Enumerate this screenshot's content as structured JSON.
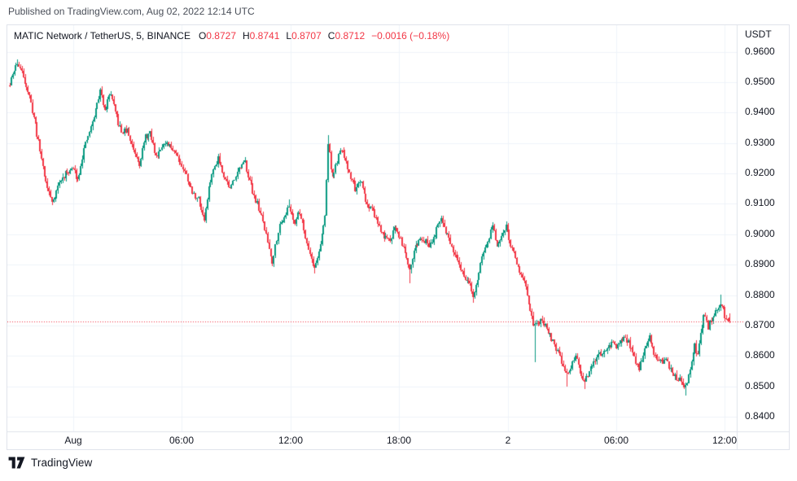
{
  "published_line": "Published on TradingView.com, Aug 02, 2022 12:14 UTC",
  "footer": {
    "brand": "TradingView"
  },
  "legend": {
    "symbol_title": "MATIC Network / TetherUS, 5, BINANCE",
    "open_label": "O",
    "open_value": "0.8727",
    "high_label": "H",
    "high_value": "0.8741",
    "low_label": "L",
    "low_value": "0.8707",
    "close_label": "C",
    "close_value": "0.8712",
    "change_value": "−0.0016 (−0.18%)"
  },
  "price_axis": {
    "unit": "USDT",
    "min": 0.8352,
    "max": 0.9687,
    "last_price": 0.8712,
    "ticks": [
      "0.9600",
      "0.9500",
      "0.9400",
      "0.9300",
      "0.9200",
      "0.9100",
      "0.9000",
      "0.8900",
      "0.8800",
      "0.8700",
      "0.8600",
      "0.8500",
      "0.8400"
    ]
  },
  "time_axis": {
    "ticks": [
      {
        "label": "Aug",
        "i": 42
      },
      {
        "label": "06:00",
        "i": 114
      },
      {
        "label": "12:00",
        "i": 186
      },
      {
        "label": "18:00",
        "i": 258
      },
      {
        "label": "2",
        "i": 330
      },
      {
        "label": "06:00",
        "i": 402
      },
      {
        "label": "12:00",
        "i": 474
      }
    ]
  },
  "chart_data": {
    "type": "candlestick",
    "symbol": "MATIC Network / TetherUS",
    "exchange": "BINANCE",
    "interval": "5",
    "quote": "USDT",
    "ylim": [
      0.8352,
      0.9687
    ],
    "grid": true,
    "candle_count": 478,
    "colors": {
      "up": "#089981",
      "down": "#F23645",
      "grid": "#F0F3FA",
      "frame": "#E0E3EB",
      "last_price_line": "#F23645",
      "text": "#131722"
    },
    "anchors": [
      [
        0,
        0.949
      ],
      [
        2,
        0.9525
      ],
      [
        5,
        0.9565
      ],
      [
        9,
        0.952
      ],
      [
        12,
        0.947
      ],
      [
        16,
        0.9385
      ],
      [
        20,
        0.9275
      ],
      [
        24,
        0.917
      ],
      [
        28,
        0.9105
      ],
      [
        33,
        0.917
      ],
      [
        38,
        0.9205
      ],
      [
        42,
        0.9215
      ],
      [
        45,
        0.918
      ],
      [
        49,
        0.928
      ],
      [
        54,
        0.935
      ],
      [
        60,
        0.947
      ],
      [
        63,
        0.9415
      ],
      [
        67,
        0.9465
      ],
      [
        70,
        0.9395
      ],
      [
        74,
        0.9335
      ],
      [
        78,
        0.934
      ],
      [
        82,
        0.928
      ],
      [
        86,
        0.9235
      ],
      [
        90,
        0.932
      ],
      [
        93,
        0.933
      ],
      [
        97,
        0.9255
      ],
      [
        101,
        0.9295
      ],
      [
        105,
        0.929
      ],
      [
        109,
        0.928
      ],
      [
        113,
        0.9235
      ],
      [
        117,
        0.9195
      ],
      [
        121,
        0.9135
      ],
      [
        125,
        0.9115
      ],
      [
        129,
        0.905
      ],
      [
        133,
        0.918
      ],
      [
        138,
        0.9255
      ],
      [
        142,
        0.9195
      ],
      [
        146,
        0.9148
      ],
      [
        151,
        0.921
      ],
      [
        156,
        0.9235
      ],
      [
        160,
        0.9155
      ],
      [
        164,
        0.91
      ],
      [
        168,
        0.904
      ],
      [
        171,
        0.8975
      ],
      [
        174,
        0.891
      ],
      [
        178,
        0.9015
      ],
      [
        182,
        0.906
      ],
      [
        185,
        0.909
      ],
      [
        189,
        0.904
      ],
      [
        192,
        0.9075
      ],
      [
        196,
        0.8995
      ],
      [
        199,
        0.8935
      ],
      [
        202,
        0.8885
      ],
      [
        206,
        0.8965
      ],
      [
        209,
        0.906
      ],
      [
        211,
        0.93
      ],
      [
        214,
        0.9185
      ],
      [
        217,
        0.924
      ],
      [
        220,
        0.928
      ],
      [
        225,
        0.92
      ],
      [
        229,
        0.915
      ],
      [
        233,
        0.9165
      ],
      [
        237,
        0.9095
      ],
      [
        241,
        0.908
      ],
      [
        245,
        0.902
      ],
      [
        249,
        0.8985
      ],
      [
        252,
        0.8975
      ],
      [
        255,
        0.903
      ],
      [
        259,
        0.8985
      ],
      [
        262,
        0.8945
      ],
      [
        265,
        0.889
      ],
      [
        269,
        0.896
      ],
      [
        273,
        0.899
      ],
      [
        278,
        0.8965
      ],
      [
        282,
        0.9
      ],
      [
        286,
        0.905
      ],
      [
        291,
        0.8985
      ],
      [
        294,
        0.8935
      ],
      [
        298,
        0.8895
      ],
      [
        301,
        0.8865
      ],
      [
        305,
        0.883
      ],
      [
        307,
        0.8795
      ],
      [
        311,
        0.8875
      ],
      [
        314,
        0.8945
      ],
      [
        318,
        0.8985
      ],
      [
        320,
        0.903
      ],
      [
        323,
        0.896
      ],
      [
        326,
        0.8985
      ],
      [
        329,
        0.903
      ],
      [
        333,
        0.895
      ],
      [
        337,
        0.8895
      ],
      [
        341,
        0.885
      ],
      [
        344,
        0.876
      ],
      [
        347,
        0.8705
      ],
      [
        349,
        0.87
      ],
      [
        352,
        0.8715
      ],
      [
        356,
        0.869
      ],
      [
        359,
        0.866
      ],
      [
        362,
        0.8625
      ],
      [
        366,
        0.858
      ],
      [
        369,
        0.8545
      ],
      [
        372,
        0.856
      ],
      [
        375,
        0.86
      ],
      [
        378,
        0.8545
      ],
      [
        381,
        0.852
      ],
      [
        384,
        0.8545
      ],
      [
        388,
        0.8585
      ],
      [
        391,
        0.8605
      ],
      [
        395,
        0.862
      ],
      [
        399,
        0.864
      ],
      [
        403,
        0.863
      ],
      [
        408,
        0.8665
      ],
      [
        412,
        0.862
      ],
      [
        417,
        0.856
      ],
      [
        421,
        0.8625
      ],
      [
        424,
        0.866
      ],
      [
        427,
        0.861
      ],
      [
        431,
        0.858
      ],
      [
        435,
        0.8585
      ],
      [
        439,
        0.854
      ],
      [
        442,
        0.853
      ],
      [
        446,
        0.851
      ],
      [
        448,
        0.8495
      ],
      [
        451,
        0.856
      ],
      [
        454,
        0.8635
      ],
      [
        456,
        0.86
      ],
      [
        460,
        0.874
      ],
      [
        463,
        0.8695
      ],
      [
        466,
        0.873
      ],
      [
        468,
        0.874
      ],
      [
        471,
        0.8765
      ],
      [
        473,
        0.8745
      ],
      [
        475,
        0.872
      ],
      [
        477,
        0.8712
      ]
    ],
    "wick_events": [
      {
        "i": 5,
        "high": 0.9575
      },
      {
        "i": 28,
        "low": 0.9095
      },
      {
        "i": 60,
        "high": 0.948
      },
      {
        "i": 67,
        "high": 0.947
      },
      {
        "i": 129,
        "low": 0.904
      },
      {
        "i": 174,
        "low": 0.89
      },
      {
        "i": 185,
        "high": 0.9115
      },
      {
        "i": 202,
        "low": 0.887
      },
      {
        "i": 211,
        "high": 0.9325
      },
      {
        "i": 265,
        "low": 0.884
      },
      {
        "i": 286,
        "high": 0.906
      },
      {
        "i": 307,
        "low": 0.8775
      },
      {
        "i": 320,
        "high": 0.904
      },
      {
        "i": 329,
        "high": 0.904
      },
      {
        "i": 348,
        "low": 0.858
      },
      {
        "i": 369,
        "low": 0.85
      },
      {
        "i": 381,
        "low": 0.849
      },
      {
        "i": 417,
        "low": 0.855
      },
      {
        "i": 448,
        "low": 0.847
      },
      {
        "i": 471,
        "high": 0.8801
      }
    ],
    "last_candle": {
      "o": 0.8727,
      "h": 0.8741,
      "l": 0.8707,
      "c": 0.8712
    },
    "noise": {
      "seed": 11,
      "body": 0.001,
      "wick": 0.0012
    }
  }
}
